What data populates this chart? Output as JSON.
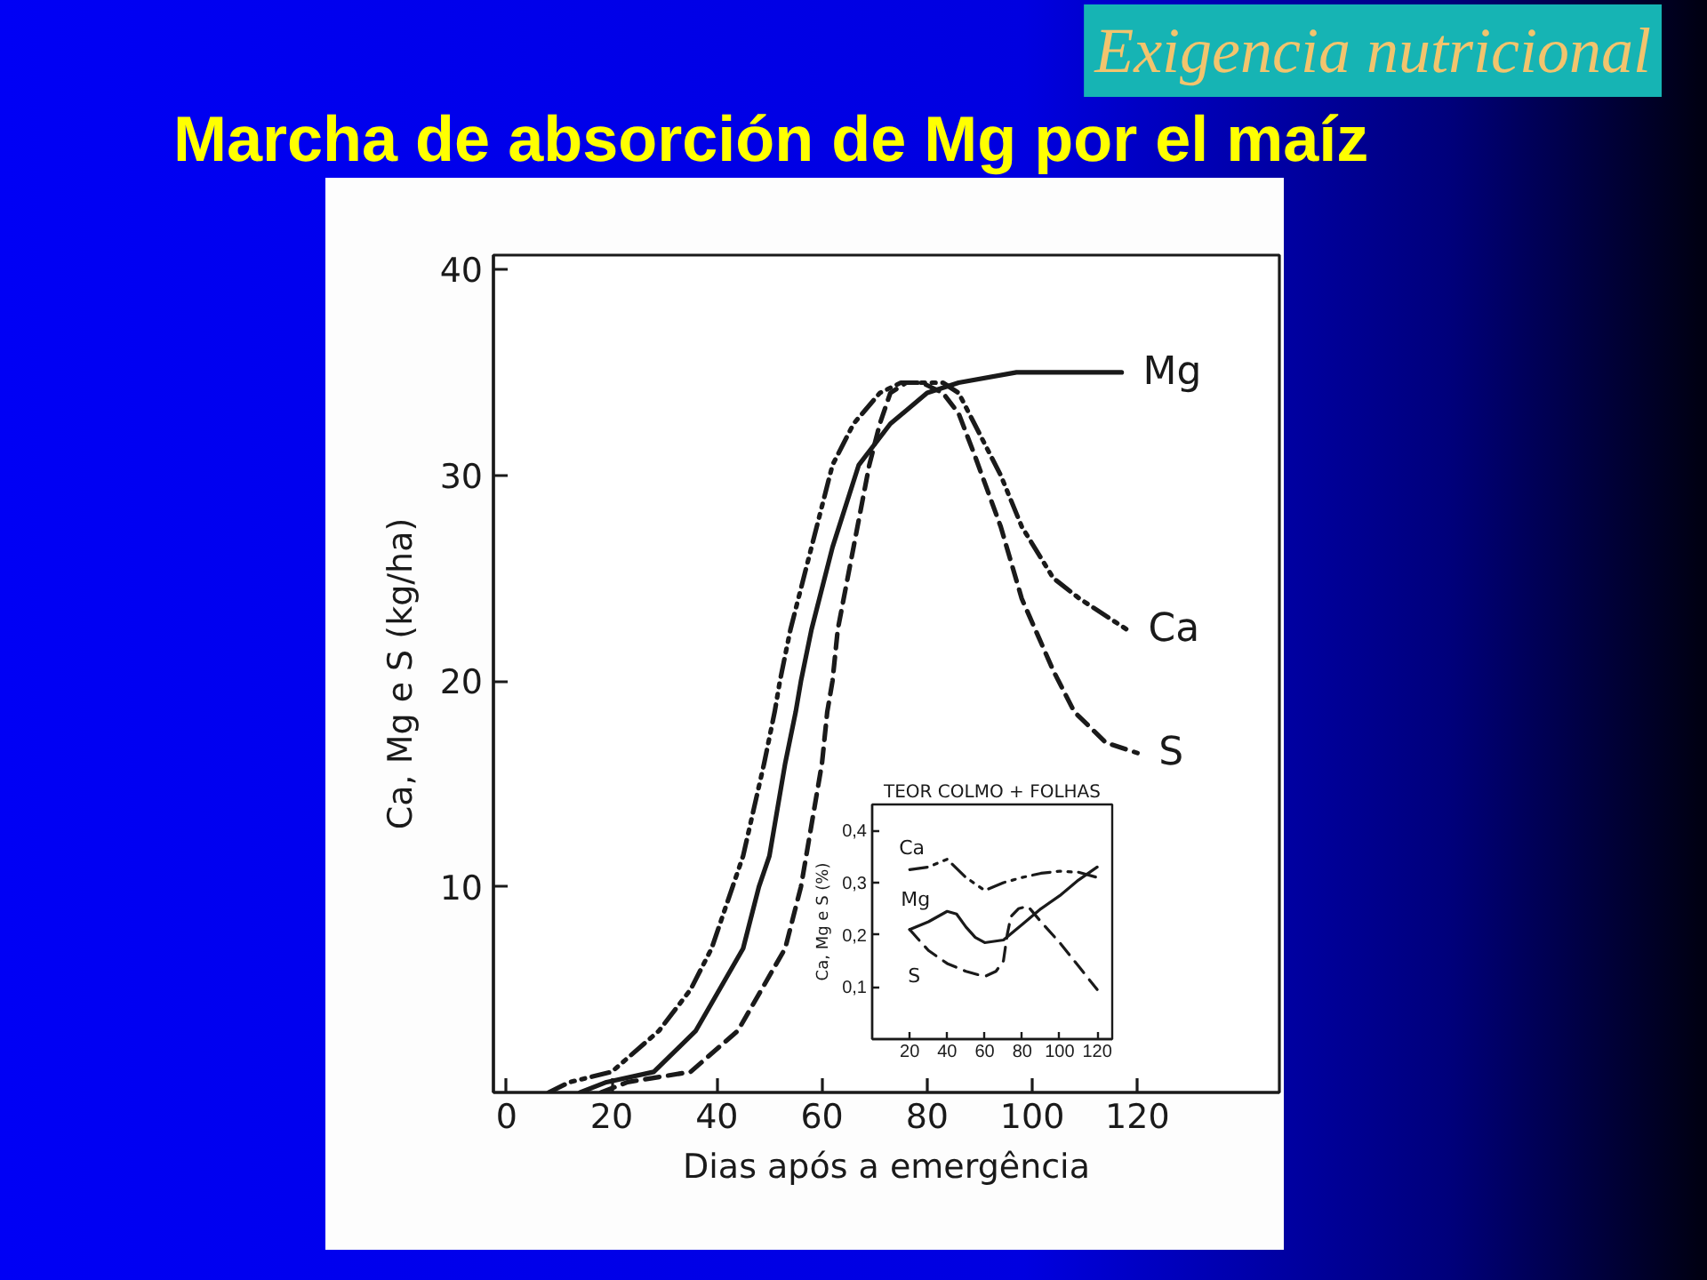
{
  "chart_data": [
    {
      "type": "line",
      "title": "Marcha de absorción de Mg por el maíz",
      "annotations": [
        "Exigencia nutricional"
      ],
      "xlabel": "Dias após a emergência",
      "ylabel": "Ca, Mg e S (kg/ha)",
      "xlim": [
        -2.5,
        147
      ],
      "xticks": [
        0,
        20,
        40,
        60,
        80,
        100,
        120
      ],
      "ylim": [
        0,
        40.7
      ],
      "yticks": [
        10,
        20,
        30,
        40
      ],
      "grid": false,
      "series": [
        {
          "name": "Ca",
          "color": "#1a1a1a",
          "line_style": "dashdot",
          "x": [
            8,
            12,
            20,
            29,
            35,
            39,
            43,
            45,
            49,
            51,
            52,
            54,
            58,
            62,
            66,
            71,
            75,
            79,
            83,
            86,
            90,
            94,
            98,
            104,
            109,
            115,
            118
          ],
          "values": [
            0,
            0.5,
            1,
            3,
            5,
            7,
            10,
            11.5,
            16,
            18.5,
            20,
            22.5,
            26.5,
            30.5,
            32.5,
            34,
            34.5,
            34.5,
            34.5,
            34,
            32,
            30,
            27.5,
            25,
            24,
            23,
            22.5
          ]
        },
        {
          "name": "Mg",
          "color": "#1a1a1a",
          "line_style": "solid",
          "x": [
            14,
            19,
            28,
            36,
            45,
            48,
            50,
            53,
            55,
            56,
            58,
            62,
            67,
            73,
            80,
            86,
            97,
            108,
            117
          ],
          "values": [
            0,
            0.5,
            1,
            3,
            7,
            10,
            11.5,
            16,
            18.5,
            20,
            22.5,
            26.5,
            30.5,
            32.5,
            34,
            34.5,
            35,
            35,
            35
          ]
        },
        {
          "name": "S",
          "color": "#1a1a1a",
          "line_style": "dashed",
          "x": [
            18,
            23,
            35,
            44,
            53,
            56,
            57,
            60,
            61,
            62,
            63,
            66,
            69,
            71,
            73,
            76,
            79,
            83,
            86,
            89,
            94,
            98,
            104,
            108,
            114,
            120
          ],
          "values": [
            0,
            0.5,
            1,
            3,
            7,
            10,
            11.5,
            16,
            18.5,
            20,
            22.5,
            26.5,
            30.5,
            32.5,
            34,
            34.5,
            34.5,
            34,
            33,
            31,
            27.5,
            24,
            20.5,
            18.5,
            17,
            16.5
          ]
        }
      ]
    },
    {
      "type": "line",
      "title": "TEOR COLMO + FOLHAS",
      "ylabel": "Ca, Mg e S (%)",
      "xlim": [
        0,
        128
      ],
      "xticks": [
        20,
        40,
        60,
        80,
        100,
        120
      ],
      "ylim": [
        0,
        0.45
      ],
      "yticks": [
        {
          "value": 0.1,
          "label": "0,1"
        },
        {
          "value": 0.2,
          "label": "0,2"
        },
        {
          "value": 0.3,
          "label": "0,3"
        },
        {
          "value": 0.4,
          "label": "0,4"
        }
      ],
      "grid": false,
      "series": [
        {
          "name": "Ca",
          "color": "#1a1a1a",
          "line_style": "dashdot",
          "x": [
            20,
            30,
            40,
            50,
            60,
            70,
            80,
            90,
            100,
            110,
            120
          ],
          "values": [
            0.325,
            0.33,
            0.345,
            0.31,
            0.285,
            0.3,
            0.31,
            0.318,
            0.322,
            0.32,
            0.31
          ]
        },
        {
          "name": "Mg",
          "color": "#1a1a1a",
          "line_style": "solid",
          "x": [
            20,
            30,
            40,
            45,
            50,
            55,
            60,
            70,
            80,
            90,
            100,
            110,
            120
          ],
          "values": [
            0.21,
            0.225,
            0.245,
            0.24,
            0.215,
            0.195,
            0.185,
            0.19,
            0.22,
            0.25,
            0.275,
            0.305,
            0.33
          ]
        },
        {
          "name": "S",
          "color": "#1a1a1a",
          "line_style": "dashed",
          "x": [
            20,
            30,
            40,
            50,
            60,
            66,
            70,
            72,
            74,
            78,
            83,
            90,
            100,
            110,
            120
          ],
          "values": [
            0.21,
            0.17,
            0.145,
            0.13,
            0.12,
            0.13,
            0.15,
            0.2,
            0.235,
            0.25,
            0.255,
            0.225,
            0.185,
            0.14,
            0.095
          ]
        }
      ]
    }
  ]
}
